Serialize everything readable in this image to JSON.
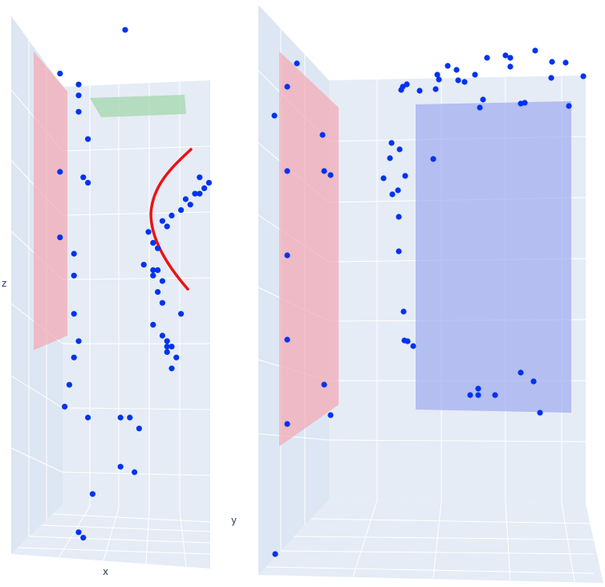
{
  "colors": {
    "pane": "#e5ecf6",
    "marker": "#0033ee",
    "curve": "#ee1111",
    "plane_pink": "#f4a6b2",
    "plane_green": "#9fd6a8",
    "plane_blue": "#9aa6ee"
  },
  "chart_data": [
    {
      "type": "scatter3d",
      "axes": {
        "xlabel": "x",
        "ylabel": "y",
        "zlabel": "z"
      },
      "grid": true,
      "series": [
        {
          "mode": "markers",
          "points": [
            [
              2.0,
              9.6
            ],
            [
              0.6,
              8.8
            ],
            [
              1.0,
              8.6
            ],
            [
              1.0,
              8.4
            ],
            [
              1.0,
              8.1
            ],
            [
              1.2,
              7.6
            ],
            [
              0.6,
              7.0
            ],
            [
              1.1,
              6.9
            ],
            [
              1.2,
              6.8
            ],
            [
              0.6,
              5.8
            ],
            [
              0.9,
              5.5
            ],
            [
              0.9,
              5.1
            ],
            [
              0.9,
              4.4
            ],
            [
              1.0,
              3.9
            ],
            [
              0.9,
              3.6
            ],
            [
              0.8,
              3.1
            ],
            [
              0.7,
              2.7
            ],
            [
              1.2,
              2.5
            ],
            [
              1.9,
              2.5
            ],
            [
              2.1,
              2.5
            ],
            [
              2.3,
              2.3
            ],
            [
              1.9,
              1.6
            ],
            [
              2.2,
              1.5
            ],
            [
              1.3,
              1.1
            ],
            [
              1.0,
              0.4
            ],
            [
              1.1,
              0.3
            ],
            [
              3.6,
              6.9
            ],
            [
              3.8,
              6.8
            ],
            [
              3.7,
              6.7
            ],
            [
              3.5,
              6.6
            ],
            [
              3.6,
              6.6
            ],
            [
              3.3,
              6.5
            ],
            [
              3.4,
              6.4
            ],
            [
              3.2,
              6.3
            ],
            [
              3.0,
              6.2
            ],
            [
              2.8,
              6.1
            ],
            [
              2.9,
              6.0
            ],
            [
              2.5,
              5.9
            ],
            [
              2.6,
              5.7
            ],
            [
              2.7,
              5.6
            ],
            [
              2.4,
              5.3
            ],
            [
              2.6,
              5.2
            ],
            [
              2.7,
              5.2
            ],
            [
              2.6,
              5.1
            ],
            [
              2.8,
              5.0
            ],
            [
              2.7,
              4.8
            ],
            [
              2.8,
              4.6
            ],
            [
              3.2,
              4.4
            ],
            [
              2.6,
              4.2
            ],
            [
              2.8,
              4.0
            ],
            [
              2.9,
              3.9
            ],
            [
              2.9,
              3.8
            ],
            [
              3.0,
              3.8
            ],
            [
              2.9,
              3.7
            ],
            [
              3.1,
              3.6
            ],
            [
              3.0,
              3.4
            ]
          ]
        }
      ],
      "curve": {
        "mode": "lines"
      }
    },
    {
      "type": "scatter3d",
      "series": [
        {
          "mode": "markers"
        }
      ]
    }
  ]
}
